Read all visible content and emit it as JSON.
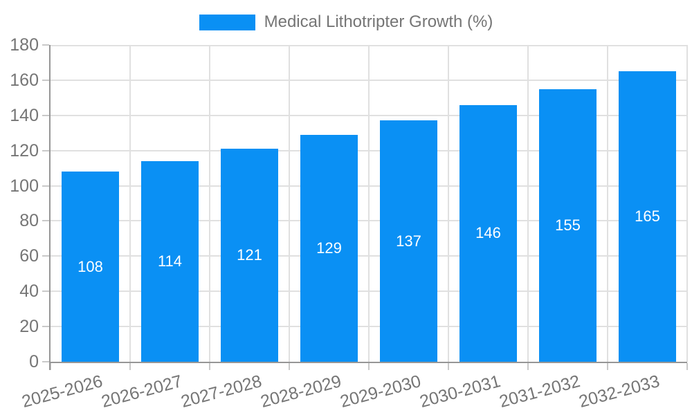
{
  "legend": {
    "label": "Medical Lithotripter Growth (%)"
  },
  "chart_data": {
    "type": "bar",
    "title": "Medical Lithotripter Growth (%)",
    "categories": [
      "2025-2026",
      "2026-2027",
      "2027-2028",
      "2028-2029",
      "2029-2030",
      "2030-2031",
      "2031-2032",
      "2032-2033"
    ],
    "values": [
      108,
      114,
      121,
      129,
      137,
      146,
      155,
      165
    ],
    "xlabel": "",
    "ylabel": "",
    "ylim": [
      0,
      180
    ],
    "ytick_step": 20,
    "grid": true,
    "legend_position": "top-center",
    "value_labels": "inside-center",
    "colors": {
      "bar": "#0a90f4",
      "grid": "#e0e0e0",
      "axis": "#969696",
      "tick": "#c9c9c9",
      "text": "#757575",
      "value_label_text": "#ffffff",
      "background": "#ffffff"
    }
  }
}
